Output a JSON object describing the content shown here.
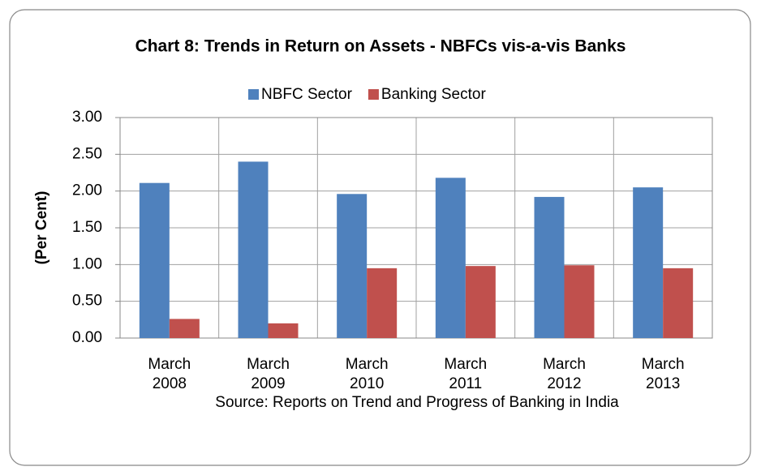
{
  "chart_data": {
    "type": "bar",
    "title": "Chart 8: Trends in Return on Assets - NBFCs vis-a-vis Banks",
    "y_label": "(Per Cent)",
    "note": "Source: Reports on Trend and Progress of Banking in India",
    "categories": [
      "March 2008",
      "March 2009",
      "March 2010",
      "March 2011",
      "March 2012",
      "March 2013"
    ],
    "series": [
      {
        "name": "NBFC Sector",
        "color": "#4f81bd",
        "values": [
          2.11,
          2.4,
          1.96,
          2.18,
          1.92,
          2.05
        ]
      },
      {
        "name": "Banking Sector",
        "color": "#c0504d",
        "values": [
          0.26,
          0.2,
          0.95,
          0.98,
          0.99,
          0.95
        ]
      }
    ],
    "ylim": [
      0,
      3
    ],
    "yticks": [
      {
        "value": 0,
        "label": "0.00"
      },
      {
        "value": 0.5,
        "label": "0.50"
      },
      {
        "value": 1,
        "label": "1.00"
      },
      {
        "value": 1.5,
        "label": "1.50"
      },
      {
        "value": 2,
        "label": "2.00"
      },
      {
        "value": 2.5,
        "label": "2.50"
      },
      {
        "value": 3,
        "label": "3.00"
      }
    ],
    "grid": true
  }
}
